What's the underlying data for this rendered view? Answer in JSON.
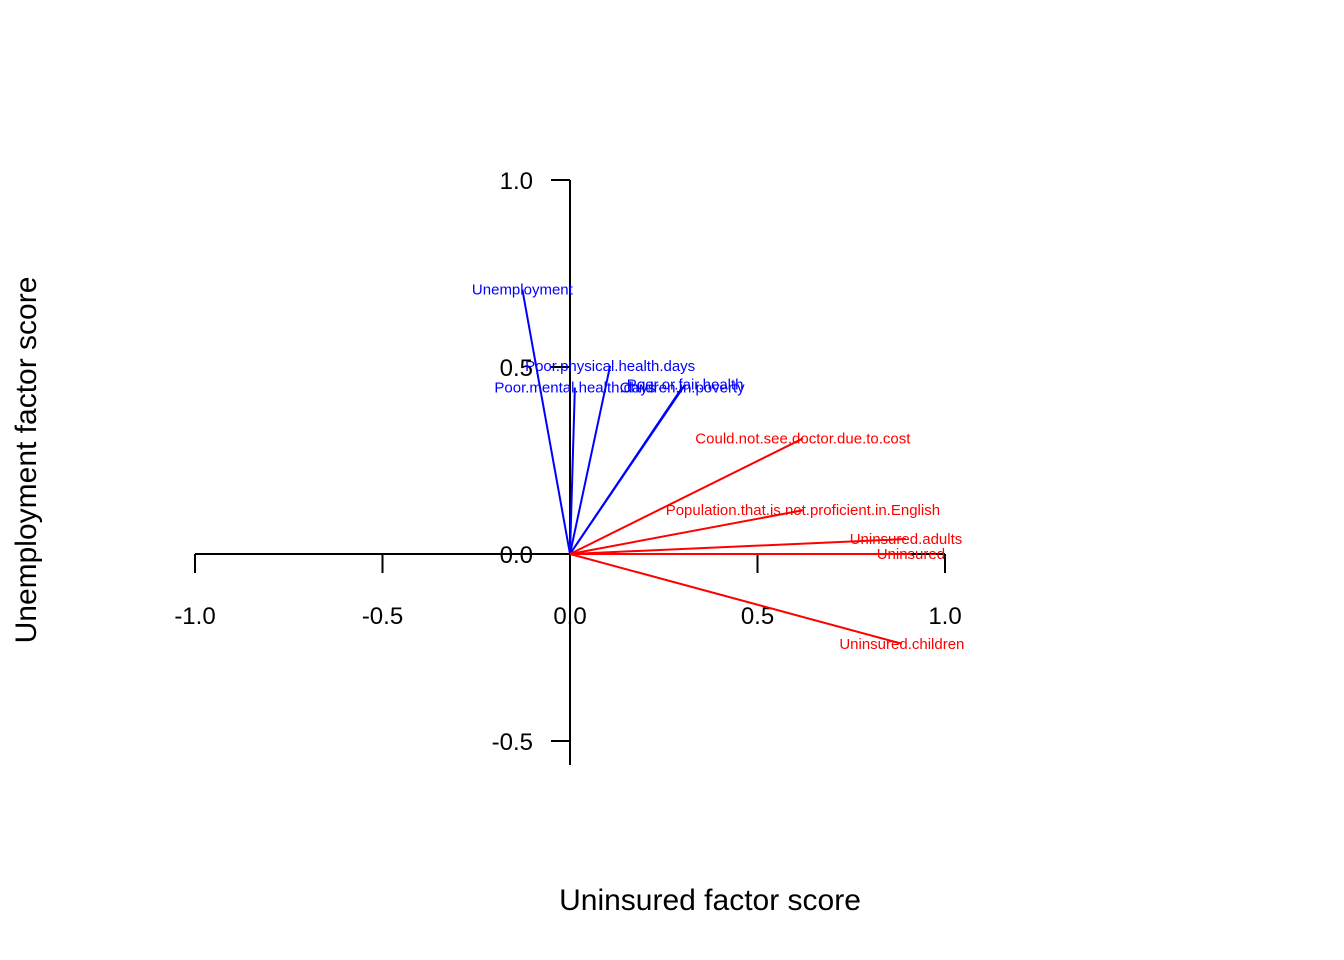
{
  "chart_data": {
    "type": "line",
    "xlabel": "Uninsured factor score",
    "ylabel": "Unemployment factor score",
    "xlim": [
      -1.0,
      1.0
    ],
    "ylim": [
      -0.5,
      1.0
    ],
    "x_ticks": [
      -1.0,
      -0.5,
      0.0,
      0.5,
      1.0
    ],
    "x_tick_labels": [
      "-1.0",
      "-0.5",
      "0.0",
      "0.5",
      "1.0"
    ],
    "y_ticks": [
      -0.5,
      0.0,
      0.5,
      1.0
    ],
    "y_tick_labels": [
      "-0.5",
      "0.0",
      "0.5",
      "1.0"
    ],
    "grid": false,
    "colors": {
      "group1": "#0000ff",
      "group2": "#ff0000",
      "axis": "#000000"
    },
    "vectors": [
      {
        "label": "Unemployment",
        "x": -0.127,
        "y": 0.707,
        "color": "#0000ff"
      },
      {
        "label": "Poor.physical.health.days",
        "x": 0.107,
        "y": 0.503,
        "color": "#0000ff"
      },
      {
        "label": "Poor.mental.health.days",
        "x": 0.013,
        "y": 0.445,
        "color": "#0000ff"
      },
      {
        "label": "Poor.or.fair.health",
        "x": 0.307,
        "y": 0.453,
        "color": "#0000ff"
      },
      {
        "label": "Children.in.poverty",
        "x": 0.299,
        "y": 0.445,
        "color": "#0000ff"
      },
      {
        "label": "Could.not.see.doctor.due.to.cost",
        "x": 0.621,
        "y": 0.309,
        "color": "#ff0000"
      },
      {
        "label": "Population.that.is.not.proficient.in.English",
        "x": 0.621,
        "y": 0.117,
        "color": "#ff0000"
      },
      {
        "label": "Uninsured.adults",
        "x": 0.896,
        "y": 0.04,
        "color": "#ff0000"
      },
      {
        "label": "Uninsured",
        "x": 0.909,
        "y": 0.0,
        "color": "#ff0000"
      },
      {
        "label": "Uninsured.children",
        "x": 0.885,
        "y": -0.24,
        "color": "#ff0000"
      }
    ]
  }
}
